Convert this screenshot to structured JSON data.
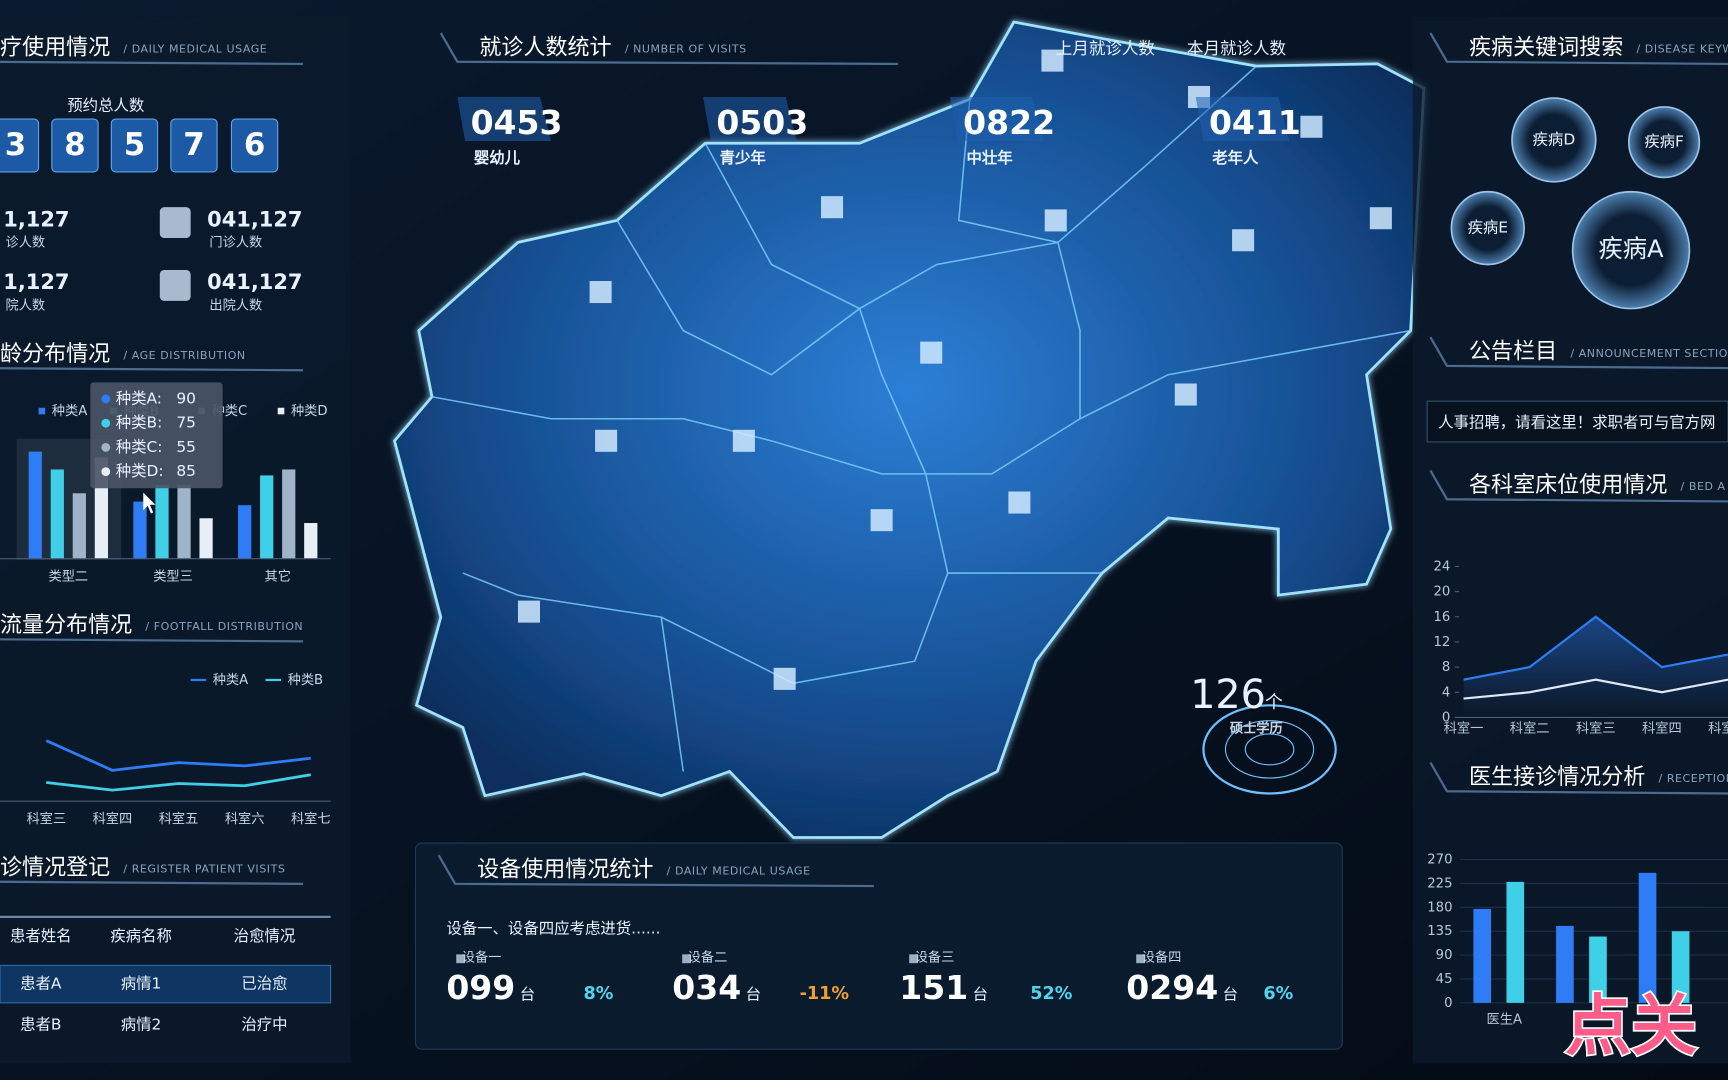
{
  "left": {
    "usage": {
      "title": "疗使用情况",
      "subtitle": "/ DAILY MEDICAL USAGE",
      "total_label": "预约总人数",
      "digits": [
        "3",
        "8",
        "5",
        "7",
        "6"
      ],
      "stats": [
        {
          "value": "1,127",
          "label": "诊人数"
        },
        {
          "value": "041,127",
          "label": "门诊人数"
        },
        {
          "value": "1,127",
          "label": "院人数"
        },
        {
          "value": "041,127",
          "label": "出院人数"
        }
      ]
    },
    "age": {
      "title": "龄分布情况",
      "subtitle": "/ AGE DISTRIBUTION"
    },
    "footfall": {
      "title": "流量分布情况",
      "subtitle": "/ FOOTFALL DISTRIBUTION"
    },
    "register": {
      "title": "诊情况登记",
      "subtitle": "/ REGISTER PATIENT VISITS",
      "header": [
        "患者姓名",
        "疾病名称",
        "治愈情况"
      ],
      "rows": [
        [
          "患者A",
          "病情1",
          "已治愈"
        ],
        [
          "患者B",
          "病情2",
          "治疗中"
        ]
      ]
    }
  },
  "center": {
    "visits": {
      "title": "就诊人数统计",
      "subtitle": "/ NUMBER OF VISITS",
      "tabs": [
        "上月就诊人数",
        "本月就诊人数"
      ],
      "groups": [
        {
          "count": "0453",
          "label": "婴幼儿"
        },
        {
          "count": "0503",
          "label": "青少年"
        },
        {
          "count": "0822",
          "label": "中壮年"
        },
        {
          "count": "0411",
          "label": "老年人"
        }
      ]
    },
    "degree": {
      "count": "126",
      "unit": "个",
      "label": "硕士学历"
    },
    "devices": {
      "title": "设备使用情况统计",
      "subtitle": "/ DAILY MEDICAL USAGE",
      "notice": "设备一、设备四应考虑进货......",
      "items": [
        {
          "name": "设备一",
          "count": "099",
          "unit": "台",
          "change": "8%"
        },
        {
          "name": "设备二",
          "count": "034",
          "unit": "台",
          "change": "-11%"
        },
        {
          "name": "设备三",
          "count": "151",
          "unit": "台",
          "change": "52%"
        },
        {
          "name": "设备四",
          "count": "0294",
          "unit": "台",
          "change": "6%"
        }
      ]
    }
  },
  "right": {
    "keywords": {
      "title": "疾病关键词搜索",
      "subtitle": "/ DISEASE KEYW",
      "bubbles": [
        "疾病D",
        "疾病F",
        "疾病E",
        "疾病A"
      ]
    },
    "notice": {
      "title": "公告栏目",
      "subtitle": "/ ANNOUNCEMENT SECTIO",
      "text": "人事招聘，请看这里！求职者可与官方网"
    },
    "beds": {
      "title": "各科室床位使用情况",
      "subtitle": "/ BED A"
    },
    "doctors": {
      "title": "医生接诊情况分析",
      "subtitle": "/ RECEPTION"
    },
    "watermark": "点关"
  },
  "chart_data": [
    {
      "type": "bar",
      "categories": [
        "类型二",
        "类型三",
        "其它"
      ],
      "series": [
        {
          "name": "种类A",
          "color": "#2f7df6",
          "values": [
            90,
            48,
            45
          ]
        },
        {
          "name": "种类B",
          "color": "#3fd0e8",
          "values": [
            75,
            62,
            70
          ]
        },
        {
          "name": "种类C",
          "color": "#9fb4c8",
          "values": [
            55,
            62,
            75
          ]
        },
        {
          "name": "种类D",
          "color": "#e8eef5",
          "values": [
            85,
            34,
            30
          ]
        }
      ],
      "tooltip_labels": [
        "种类A:",
        "种类B:",
        "种类C:",
        "种类D:"
      ]
    },
    {
      "type": "line",
      "categories": [
        "科室三",
        "科室四",
        "科室五",
        "科室六",
        "科室七"
      ],
      "series": [
        {
          "name": "种类A",
          "color": "#2f7df6",
          "values": [
            55,
            28,
            35,
            32,
            39
          ]
        },
        {
          "name": "种类B",
          "color": "#3fd0e8",
          "values": [
            17,
            10,
            16,
            14,
            24
          ]
        }
      ]
    },
    {
      "type": "line",
      "categories": [
        "科室一",
        "科室二",
        "科室三",
        "科室四",
        "科室五"
      ],
      "ylim": [
        0,
        24
      ],
      "yticks": [
        0,
        4,
        8,
        12,
        16,
        20,
        24
      ],
      "series": [
        {
          "color": "#2f7df6",
          "values": [
            6,
            8,
            16,
            8,
            10
          ]
        },
        {
          "color": "#dfe8f2",
          "values": [
            3,
            4,
            6,
            4,
            6
          ]
        }
      ]
    },
    {
      "type": "bar",
      "categories": [
        "医生A",
        null,
        null
      ],
      "ylim": [
        0,
        270
      ],
      "yticks": [
        0,
        45,
        90,
        135,
        180,
        225,
        270
      ],
      "series": [
        {
          "color": "#2f7df6",
          "values": [
            177,
            145,
            245
          ]
        },
        {
          "color": "#3fd0e8",
          "values": [
            228,
            125,
            135
          ]
        }
      ]
    }
  ]
}
